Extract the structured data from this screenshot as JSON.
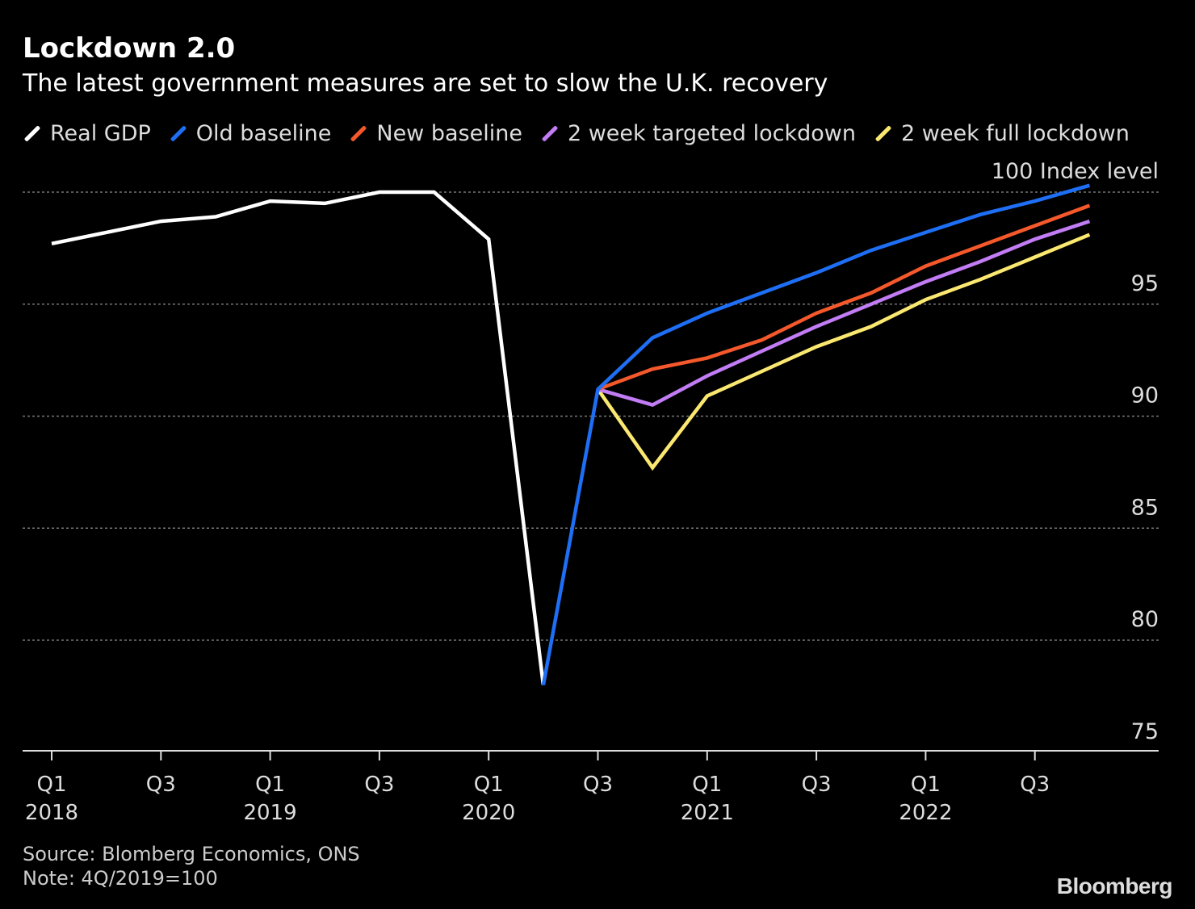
{
  "chart_data": {
    "type": "line",
    "title": "Lockdown 2.0",
    "subtitle": "The latest government measures are set to slow the U.K. recovery",
    "ylabel": "Index level",
    "ylim": [
      75,
      100
    ],
    "yticks": [
      75,
      80,
      85,
      90,
      95,
      100
    ],
    "grid": true,
    "legend_position": "top",
    "x": [
      "2018Q1",
      "2018Q2",
      "2018Q3",
      "2018Q4",
      "2019Q1",
      "2019Q2",
      "2019Q3",
      "2019Q4",
      "2020Q1",
      "2020Q2",
      "2020Q3",
      "2020Q4",
      "2021Q1",
      "2021Q2",
      "2021Q3",
      "2021Q4",
      "2022Q1",
      "2022Q2",
      "2022Q3",
      "2022Q4"
    ],
    "xtick_labels": [
      {
        "quarter": "Q1",
        "year": "2018",
        "index": 0
      },
      {
        "quarter": "Q3",
        "year": "",
        "index": 2
      },
      {
        "quarter": "Q1",
        "year": "2019",
        "index": 4
      },
      {
        "quarter": "Q3",
        "year": "",
        "index": 6
      },
      {
        "quarter": "Q1",
        "year": "2020",
        "index": 8
      },
      {
        "quarter": "Q3",
        "year": "",
        "index": 10
      },
      {
        "quarter": "Q1",
        "year": "2021",
        "index": 12
      },
      {
        "quarter": "Q3",
        "year": "",
        "index": 14
      },
      {
        "quarter": "Q1",
        "year": "2022",
        "index": 16
      },
      {
        "quarter": "Q3",
        "year": "",
        "index": 18
      }
    ],
    "series": [
      {
        "name": "Real GDP",
        "color": "#ffffff",
        "values": [
          97.7,
          98.2,
          98.7,
          98.9,
          99.6,
          99.5,
          100.0,
          100.0,
          97.9,
          78.0,
          null,
          null,
          null,
          null,
          null,
          null,
          null,
          null,
          null,
          null
        ]
      },
      {
        "name": "Old baseline",
        "color": "#1e6ff5",
        "values": [
          null,
          null,
          null,
          null,
          null,
          null,
          null,
          null,
          null,
          78.0,
          91.2,
          93.5,
          94.6,
          95.5,
          96.4,
          97.4,
          98.2,
          99.0,
          99.6,
          100.3
        ]
      },
      {
        "name": "New baseline",
        "color": "#f4582b",
        "values": [
          null,
          null,
          null,
          null,
          null,
          null,
          null,
          null,
          null,
          null,
          91.2,
          92.1,
          92.6,
          93.4,
          94.6,
          95.5,
          96.7,
          97.6,
          98.5,
          99.4
        ]
      },
      {
        "name": "2 week targeted lockdown",
        "color": "#c27cf5",
        "values": [
          null,
          null,
          null,
          null,
          null,
          null,
          null,
          null,
          null,
          null,
          91.2,
          90.5,
          91.8,
          92.9,
          94.0,
          95.0,
          96.0,
          96.9,
          97.9,
          98.7
        ]
      },
      {
        "name": "2 week full lockdown",
        "color": "#fbe870",
        "values": [
          null,
          null,
          null,
          null,
          null,
          null,
          null,
          null,
          null,
          null,
          91.2,
          87.7,
          90.9,
          92.0,
          93.1,
          94.0,
          95.2,
          96.1,
          97.1,
          98.1
        ]
      }
    ]
  },
  "footer": {
    "source": "Source: Blomberg Economics, ONS",
    "note": "Note: 4Q/2019=100",
    "logo": "Bloomberg"
  }
}
